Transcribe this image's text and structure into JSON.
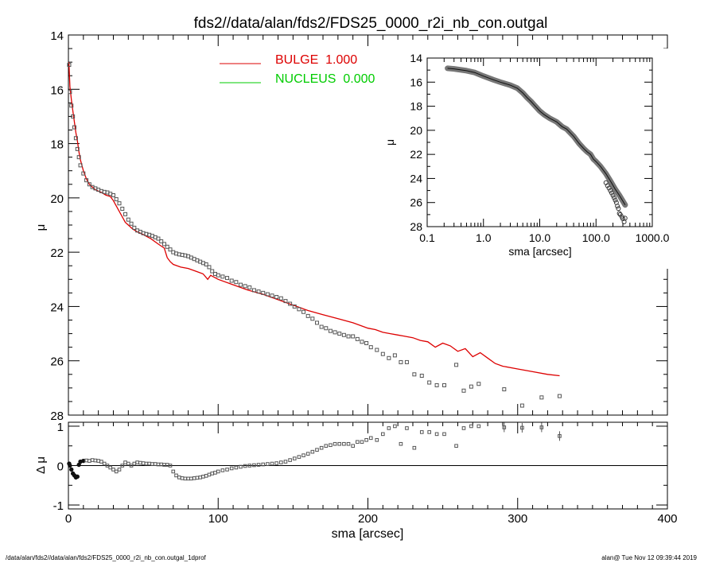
{
  "title": "fds2//data/alan/fds2/FDS25_0000_r2i_nb_con.outgal",
  "footer_left": "/data/alan/fds2//data/alan/fds2/FDS25_0000_r2i_nb_con.outgal_1dprof",
  "footer_right": "alan@  Tue Nov 12 09:39:44 2019",
  "colors": {
    "bulge": "#dd0000",
    "nucleus": "#00cc00",
    "data": "#555555",
    "axis": "#000000"
  },
  "chart_data": [
    {
      "type": "scatter",
      "panel": "main",
      "xlabel": "",
      "ylabel": "μ",
      "xlim": [
        0,
        400
      ],
      "ylim": [
        28,
        14
      ],
      "x_ticks": [
        0,
        100,
        200,
        300,
        400
      ],
      "y_ticks": [
        14,
        16,
        18,
        20,
        22,
        24,
        26,
        28
      ],
      "y_tick_labels": [
        "14",
        "16",
        "18",
        "20",
        "22",
        "24",
        "26",
        "28"
      ],
      "legend_position": "top-center",
      "series": [
        {
          "name": "BULGE  1.000",
          "kind": "line",
          "x": [
            0.3,
            1,
            2,
            3,
            4,
            5,
            6,
            7,
            8,
            10,
            12,
            14,
            16,
            18,
            20,
            22,
            25,
            28,
            30,
            32,
            34,
            36,
            38,
            40,
            43,
            46,
            50,
            55,
            60,
            64,
            66,
            68,
            70,
            75,
            80,
            85,
            90,
            93,
            95,
            100,
            110,
            120,
            130,
            140,
            150,
            160,
            170,
            180,
            190,
            200,
            205,
            210,
            215,
            220,
            225,
            230,
            235,
            240,
            245,
            250,
            255,
            260,
            265,
            270,
            275,
            280,
            285,
            290,
            300,
            310,
            320,
            328
          ],
          "y": [
            15.0,
            15.9,
            16.4,
            16.8,
            17.2,
            17.6,
            17.9,
            18.3,
            18.6,
            19.0,
            19.3,
            19.5,
            19.6,
            19.7,
            19.75,
            19.8,
            19.9,
            19.95,
            20.1,
            20.3,
            20.5,
            20.7,
            20.9,
            21.0,
            21.15,
            21.25,
            21.35,
            21.5,
            21.7,
            21.85,
            22.2,
            22.35,
            22.45,
            22.55,
            22.6,
            22.7,
            22.8,
            23.0,
            22.85,
            23.0,
            23.2,
            23.4,
            23.55,
            23.75,
            23.95,
            24.15,
            24.3,
            24.45,
            24.6,
            24.8,
            24.85,
            24.95,
            25.0,
            25.05,
            25.1,
            25.15,
            25.25,
            25.3,
            25.5,
            25.35,
            25.45,
            25.65,
            25.55,
            25.85,
            25.7,
            25.9,
            26.1,
            26.2,
            26.3,
            26.4,
            26.5,
            26.55
          ]
        },
        {
          "name": "NUCLEUS  0.000",
          "kind": "line",
          "x": [],
          "y": []
        },
        {
          "name": "",
          "kind": "points",
          "x": [
            0.5,
            1,
            2,
            3,
            4,
            5,
            6,
            7,
            8,
            10,
            12,
            14,
            16,
            18,
            20,
            22,
            24,
            26,
            28,
            30,
            32,
            34,
            36,
            38,
            40,
            42,
            44,
            46,
            48,
            50,
            52,
            54,
            56,
            58,
            60,
            62,
            64,
            66,
            68,
            70,
            72,
            74,
            76,
            78,
            80,
            82,
            84,
            86,
            88,
            90,
            92,
            94,
            96,
            98,
            100,
            103,
            106,
            109,
            112,
            115,
            118,
            121,
            124,
            127,
            130,
            133,
            136,
            139,
            142,
            145,
            148,
            151,
            154,
            157,
            160,
            163,
            166,
            169,
            172,
            175,
            178,
            181,
            184,
            187,
            190,
            193,
            196,
            199,
            202,
            206,
            210,
            214,
            218,
            222,
            226,
            231,
            236,
            241,
            246,
            251,
            259,
            264,
            269,
            274,
            291,
            303,
            316,
            328
          ],
          "y": [
            15.1,
            16.1,
            16.6,
            17.0,
            17.4,
            17.8,
            18.2,
            18.5,
            18.8,
            19.1,
            19.35,
            19.5,
            19.6,
            19.65,
            19.7,
            19.75,
            19.78,
            19.8,
            19.85,
            19.9,
            20.05,
            20.2,
            20.4,
            20.6,
            20.8,
            20.95,
            21.1,
            21.2,
            21.25,
            21.3,
            21.33,
            21.36,
            21.4,
            21.45,
            21.5,
            21.6,
            21.7,
            21.8,
            21.9,
            22.0,
            22.05,
            22.08,
            22.1,
            22.12,
            22.15,
            22.2,
            22.25,
            22.3,
            22.35,
            22.4,
            22.45,
            22.55,
            22.7,
            22.8,
            22.85,
            22.9,
            22.95,
            23.05,
            23.1,
            23.2,
            23.25,
            23.3,
            23.4,
            23.45,
            23.5,
            23.55,
            23.6,
            23.65,
            23.7,
            23.8,
            23.9,
            24.0,
            24.1,
            24.2,
            24.35,
            24.45,
            24.6,
            24.75,
            24.8,
            24.9,
            24.95,
            25.0,
            25.05,
            25.1,
            25.1,
            25.2,
            25.3,
            25.35,
            25.5,
            25.6,
            25.75,
            25.9,
            25.8,
            26.05,
            26.05,
            26.5,
            26.55,
            26.8,
            26.9,
            26.9,
            26.15,
            27.1,
            26.95,
            26.85,
            27.05,
            27.65,
            27.35,
            27.3
          ]
        }
      ]
    },
    {
      "type": "line",
      "panel": "inset",
      "xlabel": "sma [arcsec]",
      "ylabel": "μ",
      "x_scale": "log",
      "xlim": [
        0.1,
        1000
      ],
      "ylim": [
        28,
        14
      ],
      "x_ticks": [
        0.1,
        1,
        10,
        100,
        1000
      ],
      "x_tick_labels": [
        "0.1",
        "1.0",
        "10.0",
        "100.0",
        "1000.0"
      ],
      "y_ticks": [
        14,
        16,
        18,
        20,
        22,
        24,
        26,
        28
      ],
      "y_tick_labels": [
        "14",
        "16",
        "18",
        "20",
        "22",
        "24",
        "26",
        "28"
      ],
      "series": [
        {
          "name": "",
          "kind": "line",
          "x": [
            0.23,
            0.3,
            0.5,
            0.7,
            1,
            1.5,
            2,
            3,
            4,
            5,
            6,
            7,
            8,
            10,
            12,
            15,
            20,
            25,
            30,
            40,
            50,
            60,
            70,
            80,
            90,
            100,
            120,
            150,
            180,
            220,
            260,
            330
          ],
          "y": [
            14.85,
            14.9,
            15.05,
            15.2,
            15.5,
            15.8,
            16.0,
            16.25,
            16.5,
            16.9,
            17.3,
            17.6,
            17.9,
            18.4,
            18.7,
            19.0,
            19.3,
            19.7,
            19.9,
            20.5,
            21.1,
            21.5,
            21.8,
            22.0,
            22.4,
            22.6,
            23.0,
            23.6,
            24.2,
            24.9,
            25.4,
            26.2
          ]
        },
        {
          "name": "",
          "kind": "points",
          "x": [
            150,
            160,
            170,
            180,
            190,
            200,
            210,
            220,
            230,
            240,
            250,
            260,
            270,
            290,
            300,
            316,
            328
          ],
          "y": [
            24.35,
            24.6,
            24.8,
            25.0,
            25.2,
            25.4,
            25.6,
            25.8,
            26.0,
            26.3,
            26.5,
            26.9,
            27.0,
            27.2,
            27.35,
            27.6,
            27.3
          ]
        }
      ]
    },
    {
      "type": "scatter",
      "panel": "residual",
      "xlabel": "sma [arcsec]",
      "ylabel": "Δ μ",
      "xlim": [
        0,
        400
      ],
      "ylim": [
        -1.1,
        1.1
      ],
      "x_ticks": [
        0,
        100,
        200,
        300,
        400
      ],
      "x_tick_labels": [
        "0",
        "100",
        "200",
        "300",
        "400"
      ],
      "y_ticks": [
        -1,
        0,
        1
      ],
      "y_tick_labels": [
        "-1",
        "0",
        "1"
      ],
      "series": [
        {
          "name": "",
          "kind": "points",
          "x": [
            0.5,
            1,
            2,
            3,
            4,
            5,
            6,
            7,
            8,
            10,
            12,
            14,
            16,
            18,
            20,
            22,
            24,
            26,
            28,
            30,
            32,
            34,
            36,
            38,
            40,
            42,
            44,
            46,
            48,
            50,
            52,
            54,
            56,
            58,
            60,
            62,
            64,
            66,
            68,
            70,
            72,
            74,
            76,
            78,
            80,
            82,
            84,
            86,
            88,
            90,
            92,
            94,
            96,
            98,
            100,
            103,
            106,
            109,
            112,
            115,
            118,
            121,
            124,
            127,
            130,
            133,
            136,
            139,
            142,
            145,
            148,
            151,
            154,
            157,
            160,
            163,
            166,
            169,
            172,
            175,
            178,
            181,
            184,
            187,
            190,
            193,
            196,
            199,
            202,
            206,
            210,
            214,
            218,
            222,
            226,
            231,
            236,
            241,
            246,
            251,
            259,
            264,
            269,
            274,
            291,
            303,
            316,
            328
          ],
          "y": [
            0.05,
            0.0,
            -0.1,
            -0.2,
            -0.25,
            -0.3,
            -0.28,
            0.02,
            0.1,
            0.12,
            0.13,
            0.12,
            0.14,
            0.13,
            0.12,
            0.1,
            0.05,
            0.0,
            -0.05,
            -0.1,
            -0.15,
            -0.1,
            0.0,
            0.08,
            0.05,
            0.0,
            0.05,
            0.08,
            0.07,
            0.06,
            0.05,
            0.05,
            0.04,
            0.04,
            0.03,
            0.03,
            0.02,
            0.02,
            0.0,
            -0.15,
            -0.25,
            -0.3,
            -0.32,
            -0.33,
            -0.33,
            -0.33,
            -0.32,
            -0.31,
            -0.3,
            -0.28,
            -0.26,
            -0.23,
            -0.2,
            -0.18,
            -0.15,
            -0.12,
            -0.1,
            -0.07,
            -0.05,
            -0.03,
            -0.01,
            0.0,
            0.01,
            0.02,
            0.03,
            0.04,
            0.05,
            0.06,
            0.08,
            0.1,
            0.14,
            0.18,
            0.22,
            0.26,
            0.3,
            0.35,
            0.4,
            0.45,
            0.5,
            0.52,
            0.55,
            0.55,
            0.55,
            0.55,
            0.5,
            0.6,
            0.6,
            0.65,
            0.7,
            0.65,
            0.8,
            0.95,
            1.0,
            0.55,
            0.95,
            0.45,
            0.85,
            0.85,
            0.8,
            0.8,
            0.5,
            0.95,
            1.0,
            1.0,
            0.97,
            0.96,
            0.97,
            0.75
          ]
        }
      ]
    }
  ]
}
